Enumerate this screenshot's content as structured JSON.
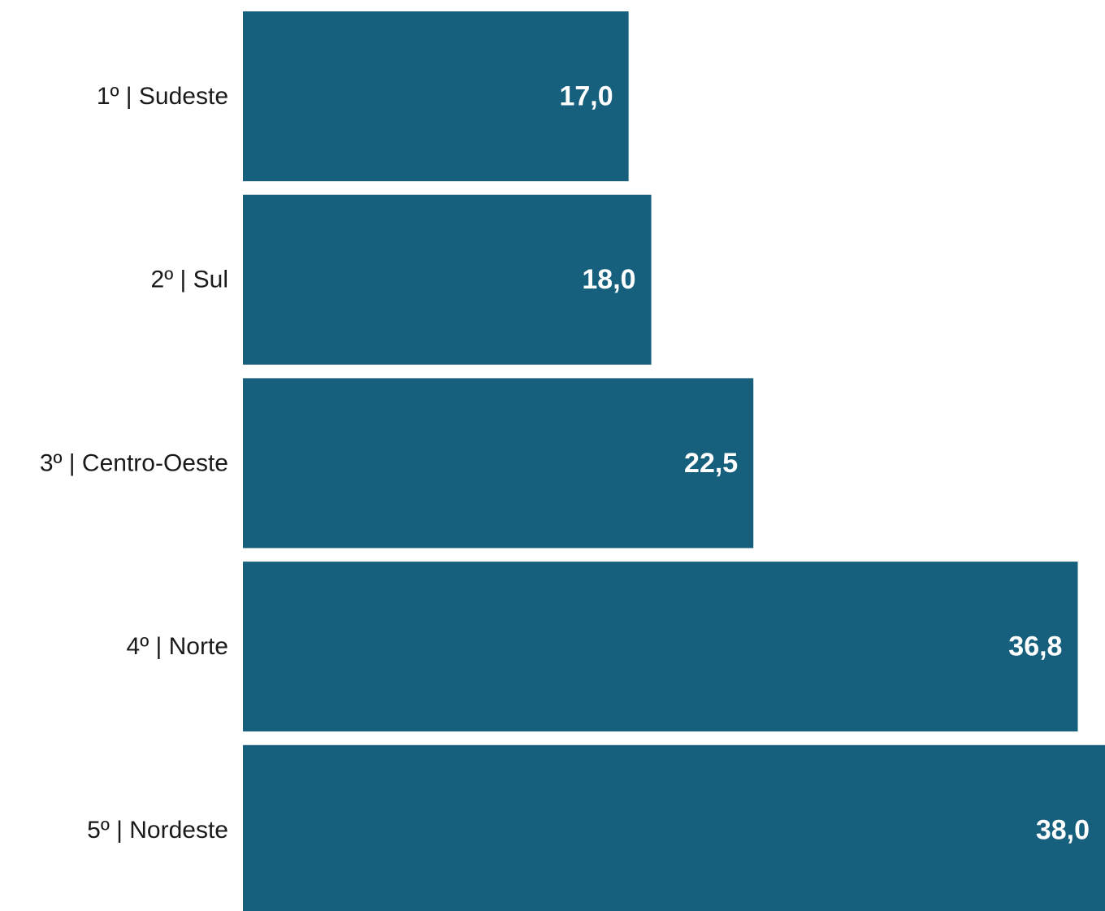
{
  "chart_data": {
    "type": "bar",
    "orientation": "horizontal",
    "categories": [
      "1º | Sudeste",
      "2º | Sul",
      "3º | Centro-Oeste",
      "4º | Norte",
      "5º | Nordeste"
    ],
    "values": [
      17.0,
      18.0,
      22.5,
      36.8,
      38.0
    ],
    "value_labels": [
      "17,0",
      "18,0",
      "22,5",
      "36,8",
      "38,0"
    ],
    "title": "",
    "xlabel": "",
    "ylabel": "",
    "xlim": [
      0,
      38.0
    ],
    "grid": false,
    "legend": "none",
    "colors": {
      "bar": "#165F7D",
      "value_label": "#FFFFFF",
      "category_label": "#1A1A1A"
    }
  }
}
